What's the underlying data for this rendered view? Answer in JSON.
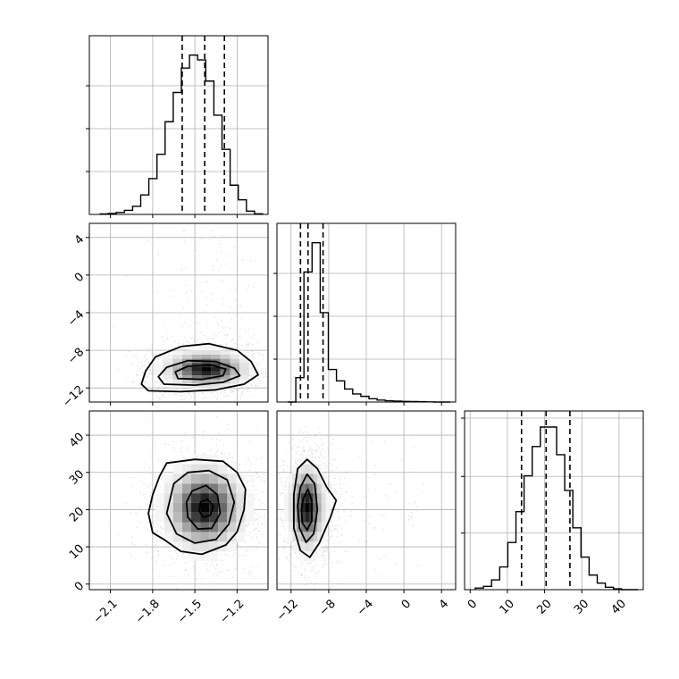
{
  "chart_data": {
    "type": "corner",
    "grid": true,
    "parameters": [
      {
        "range": [
          -2.25,
          -0.98
        ],
        "ticks": [
          -2.1,
          -1.8,
          -1.5,
          -1.2
        ],
        "tick_labels": [
          "−2.1",
          "−1.8",
          "−1.5",
          "−1.2"
        ],
        "quantiles": [
          -1.59,
          -1.43,
          -1.29
        ],
        "hist_heights": [
          0.003,
          0.006,
          0.012,
          0.025,
          0.05,
          0.12,
          0.22,
          0.37,
          0.57,
          0.75,
          0.9,
          0.98,
          0.95,
          0.82,
          0.61,
          0.4,
          0.18,
          0.09,
          0.02,
          0.004
        ],
        "hist_yticks": [
          0.25,
          0.5,
          0.75
        ]
      },
      {
        "range": [
          -13.5,
          5.5
        ],
        "ticks": [
          -12,
          -8,
          -4,
          0,
          4
        ],
        "tick_labels": [
          "−12",
          "−8",
          "−4",
          "0",
          "4"
        ],
        "quantiles": [
          -11.0,
          -10.2,
          -8.6
        ],
        "hist_heights": [
          0.0,
          0.15,
          0.8,
          0.98,
          0.55,
          0.2,
          0.13,
          0.08,
          0.05,
          0.035,
          0.02,
          0.012,
          0.008,
          0.006,
          0.004,
          0.003,
          0.002,
          0.001,
          0.0,
          0.0
        ],
        "hist_yticks": [
          0.25,
          0.5,
          0.75
        ]
      },
      {
        "range": [
          -1.5,
          46.5
        ],
        "ticks": [
          0,
          10,
          20,
          30,
          40
        ],
        "tick_labels": [
          "0",
          "10",
          "20",
          "30",
          "40"
        ],
        "quantiles": [
          13.8,
          20.4,
          26.8
        ],
        "hist_heights": [
          0.01,
          0.02,
          0.06,
          0.14,
          0.29,
          0.48,
          0.7,
          0.88,
          1.0,
          1.0,
          0.83,
          0.61,
          0.38,
          0.2,
          0.09,
          0.04,
          0.015,
          0.005,
          0.0,
          0.0
        ],
        "hist_yticks": [
          0.33,
          0.66,
          1.0
        ]
      }
    ],
    "pairs": [
      {
        "x_param": 0,
        "y_param": 1,
        "center": [
          -1.42,
          -10.0
        ],
        "spread": [
          0.17,
          1.1
        ],
        "heavy_tail": {
          "param": 1,
          "to": 5.0
        },
        "contours": [
          [
            [
              -1.83,
              -12.3
            ],
            [
              -1.6,
              -12.4
            ],
            [
              -1.35,
              -12.2
            ],
            [
              -1.15,
              -11.6
            ],
            [
              -1.05,
              -10.6
            ],
            [
              -1.1,
              -9.2
            ],
            [
              -1.2,
              -8.0
            ],
            [
              -1.4,
              -7.3
            ],
            [
              -1.6,
              -7.6
            ],
            [
              -1.78,
              -8.7
            ],
            [
              -1.85,
              -10.2
            ],
            [
              -1.88,
              -11.6
            ]
          ],
          [
            [
              -1.72,
              -11.6
            ],
            [
              -1.5,
              -11.7
            ],
            [
              -1.3,
              -11.4
            ],
            [
              -1.18,
              -10.7
            ],
            [
              -1.22,
              -9.9
            ],
            [
              -1.35,
              -9.2
            ],
            [
              -1.55,
              -9.1
            ],
            [
              -1.7,
              -9.8
            ],
            [
              -1.76,
              -10.8
            ]
          ],
          [
            [
              -1.62,
              -11.0
            ],
            [
              -1.45,
              -11.1
            ],
            [
              -1.3,
              -10.7
            ],
            [
              -1.28,
              -10.0
            ],
            [
              -1.38,
              -9.6
            ],
            [
              -1.55,
              -9.7
            ],
            [
              -1.64,
              -10.3
            ]
          ]
        ]
      },
      {
        "x_param": 0,
        "y_param": 2,
        "center": [
          -1.43,
          20.5
        ],
        "spread": [
          0.16,
          6.5
        ],
        "contours": [
          [
            [
              -1.75,
              29
            ],
            [
              -1.7,
              32.5
            ],
            [
              -1.5,
              33.5
            ],
            [
              -1.3,
              33
            ],
            [
              -1.2,
              30
            ],
            [
              -1.14,
              25.5
            ],
            [
              -1.15,
              20
            ],
            [
              -1.2,
              14
            ],
            [
              -1.28,
              10.5
            ],
            [
              -1.45,
              8
            ],
            [
              -1.6,
              8.8
            ],
            [
              -1.72,
              12
            ],
            [
              -1.8,
              13.8
            ],
            [
              -1.83,
              19
            ],
            [
              -1.8,
              24
            ]
          ],
          [
            [
              -1.65,
              27
            ],
            [
              -1.55,
              30
            ],
            [
              -1.4,
              30.5
            ],
            [
              -1.27,
              28
            ],
            [
              -1.22,
              22
            ],
            [
              -1.26,
              16
            ],
            [
              -1.35,
              12
            ],
            [
              -1.5,
              11
            ],
            [
              -1.63,
              13.5
            ],
            [
              -1.7,
              19
            ]
          ],
          [
            [
              -1.52,
              25
            ],
            [
              -1.42,
              26.5
            ],
            [
              -1.34,
              24
            ],
            [
              -1.32,
              19
            ],
            [
              -1.38,
              15
            ],
            [
              -1.48,
              14.8
            ],
            [
              -1.55,
              18
            ],
            [
              -1.56,
              22
            ]
          ],
          [
            [
              -1.46,
              22
            ],
            [
              -1.41,
              22.8
            ],
            [
              -1.37,
              21
            ],
            [
              -1.39,
              18.5
            ],
            [
              -1.44,
              18
            ],
            [
              -1.47,
              19.6
            ]
          ]
        ]
      },
      {
        "x_param": 1,
        "y_param": 2,
        "center": [
          -10.3,
          20.5
        ],
        "spread": [
          1.1,
          6.5
        ],
        "heavy_tail": {
          "param": 1,
          "to": 2.0
        },
        "contours": [
          [
            [
              -11.3,
              31
            ],
            [
              -10.3,
              33.5
            ],
            [
              -9.2,
              31
            ],
            [
              -8.2,
              26
            ],
            [
              -7.2,
              22.5
            ],
            [
              -7.8,
              18
            ],
            [
              -9.0,
              11
            ],
            [
              -10.0,
              7.2
            ],
            [
              -11.0,
              9
            ],
            [
              -11.7,
              15
            ],
            [
              -11.7,
              24
            ]
          ],
          [
            [
              -11.0,
              26
            ],
            [
              -10.3,
              29.5
            ],
            [
              -9.5,
              27
            ],
            [
              -9.2,
              20
            ],
            [
              -9.6,
              13.5
            ],
            [
              -10.4,
              11.2
            ],
            [
              -11.1,
              15
            ],
            [
              -11.3,
              21
            ]
          ],
          [
            [
              -10.7,
              23
            ],
            [
              -10.2,
              25.5
            ],
            [
              -9.8,
              22.5
            ],
            [
              -9.8,
              17
            ],
            [
              -10.3,
              14.5
            ],
            [
              -10.8,
              16.5
            ],
            [
              -10.9,
              20
            ]
          ]
        ]
      }
    ],
    "colors": {
      "hist_line": "#000000",
      "quantile_line": "#000000",
      "contour_line": "#000000",
      "scatter": "#9a9a9a",
      "grid": "#b0b0b0",
      "axes": "#000000"
    }
  }
}
